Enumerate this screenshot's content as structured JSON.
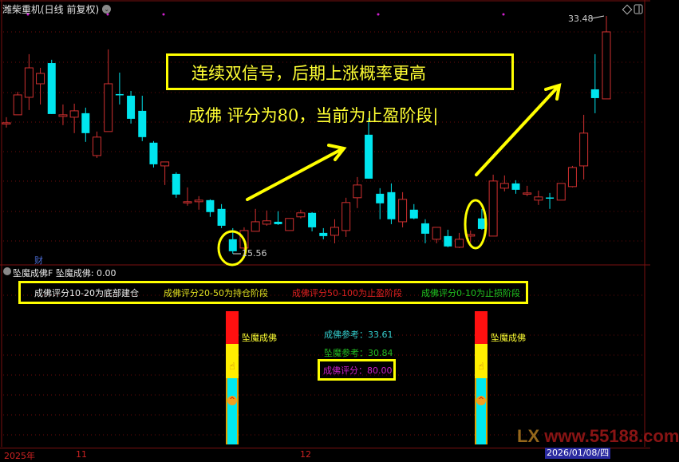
{
  "header": {
    "title": "潍柴重机(日线 前复权)",
    "menu_icon": "chevron-down-circle-icon"
  },
  "main_chart": {
    "annotation_1": "连续双信号，后期上涨概率更高",
    "annotation_2": "成佛 评分为80，当前为止盈阶段|",
    "low_label": "15.56",
    "high_label": "33.48",
    "finance_marker": "财",
    "colors": {
      "up": "#d03030",
      "down": "#00e5ee",
      "annotation": "#ffff00",
      "grid": "#6a0a0a"
    }
  },
  "chart_data": {
    "type": "candlestick",
    "fields": [
      "open",
      "high",
      "low",
      "close"
    ],
    "candles": [
      [
        25.37,
        25.85,
        25.07,
        25.43
      ],
      [
        26.03,
        27.77,
        26.03,
        27.53
      ],
      [
        27.35,
        30.6,
        26.39,
        29.57
      ],
      [
        28.37,
        29.57,
        26.81,
        29.15
      ],
      [
        29.93,
        30.18,
        26.09,
        26.09
      ],
      [
        25.91,
        26.81,
        25.25,
        26.03
      ],
      [
        25.85,
        26.87,
        24.65,
        26.33
      ],
      [
        26.15,
        26.57,
        23.99,
        24.65
      ],
      [
        22.96,
        24.77,
        22.78,
        24.35
      ],
      [
        24.77,
        30.96,
        24.77,
        28.37
      ],
      [
        27.59,
        29.21,
        26.81,
        27.53
      ],
      [
        27.47,
        27.83,
        25.37,
        25.73
      ],
      [
        26.33,
        27.47,
        24.05,
        24.35
      ],
      [
        23.93,
        24.05,
        22.06,
        22.3
      ],
      [
        22.18,
        22.48,
        20.74,
        22.48
      ],
      [
        21.58,
        21.7,
        19.78,
        20.02
      ],
      [
        19.42,
        20.56,
        19.18,
        19.48
      ],
      [
        19.48,
        19.9,
        18.88,
        19.6
      ],
      [
        19.6,
        19.66,
        18.34,
        18.7
      ],
      [
        18.94,
        19.3,
        17.49,
        17.67
      ],
      [
        16.65,
        17.49,
        15.56,
        15.75
      ],
      [
        15.99,
        17.55,
        15.87,
        17.31
      ],
      [
        17.25,
        18.94,
        17.25,
        17.97
      ],
      [
        17.79,
        18.82,
        17.67,
        18.04
      ],
      [
        17.97,
        18.76,
        17.73,
        17.79
      ],
      [
        17.31,
        18.22,
        17.31,
        18.22
      ],
      [
        18.34,
        18.88,
        18.22,
        18.64
      ],
      [
        18.64,
        18.7,
        17.25,
        17.55
      ],
      [
        17.13,
        17.49,
        16.65,
        16.89
      ],
      [
        16.95,
        18.16,
        16.35,
        17.55
      ],
      [
        17.31,
        19.78,
        16.83,
        19.42
      ],
      [
        19.78,
        21.34,
        19.0,
        20.74
      ],
      [
        24.53,
        25.79,
        21.22,
        21.22
      ],
      [
        20.08,
        20.5,
        18.16,
        19.36
      ],
      [
        20.2,
        20.86,
        17.79,
        18.16
      ],
      [
        17.97,
        20.2,
        17.55,
        19.66
      ],
      [
        18.88,
        19.3,
        18.16,
        18.22
      ],
      [
        17.85,
        18.16,
        16.35,
        17.07
      ],
      [
        16.65,
        17.55,
        16.35,
        17.55
      ],
      [
        16.89,
        17.37,
        16.05,
        16.11
      ],
      [
        16.05,
        17.13,
        15.99,
        16.65
      ],
      [
        16.89,
        17.31,
        16.41,
        17.01
      ],
      [
        18.22,
        18.94,
        17.37,
        17.43
      ],
      [
        16.89,
        21.52,
        16.89,
        21.04
      ],
      [
        20.5,
        21.46,
        20.26,
        20.86
      ],
      [
        20.86,
        21.1,
        20.08,
        20.38
      ],
      [
        20.08,
        20.68,
        19.9,
        20.14
      ],
      [
        19.6,
        20.32,
        19.24,
        19.84
      ],
      [
        19.8,
        20.14,
        18.94,
        19.78
      ],
      [
        19.6,
        20.86,
        19.6,
        20.86
      ],
      [
        20.62,
        22.18,
        20.56,
        22.06
      ],
      [
        22.18,
        26.03,
        21.16,
        24.65
      ],
      [
        27.95,
        30.6,
        26.15,
        27.29
      ],
      [
        27.23,
        33.48,
        27.23,
        32.28
      ]
    ],
    "high": 33.48,
    "low": 15.56,
    "x_ticks": [
      "2025年",
      "11",
      "12"
    ]
  },
  "indicator_panel": {
    "title": "坠魔成佛F  坠魔成佛: 0.00",
    "legend": [
      {
        "text": "成佛评分10-20为底部建仓",
        "color": "#f0f0f0"
      },
      {
        "text": "成佛评分20-50为持仓阶段",
        "color": "#e0e020"
      },
      {
        "text": "成佛评分50-100为止盈阶段",
        "color": "#e02020"
      },
      {
        "text": "成佛评分0-10为止损阶段",
        "color": "#20c020"
      }
    ],
    "bar_label": "坠魔成佛",
    "ref_buddha": "成佛参考：33.61",
    "ref_demon": "坠魔参考：30.84",
    "score": "成佛评分：80.00"
  },
  "footer": {
    "year_label": "2025年",
    "month_11": "11",
    "month_12": "12",
    "cursor_date": "2026/01/08/四",
    "watermark_lx": "LX",
    "watermark_url": "www.55188.com"
  }
}
